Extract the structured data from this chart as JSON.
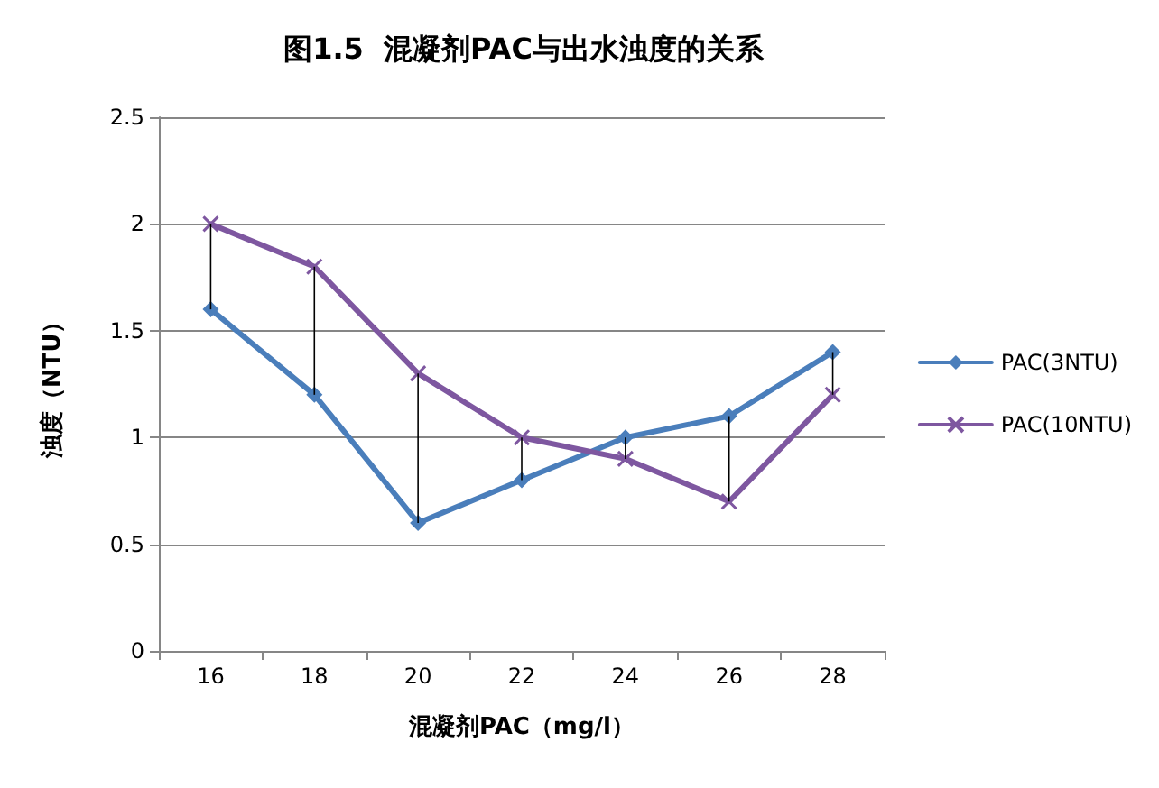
{
  "chart_data": {
    "type": "line",
    "title": "图1.5  混凝剂PAC与出水浊度的关系",
    "xlabel": "混凝剂PAC（mg/l）",
    "ylabel": "浊度（NTU）",
    "categories": [
      "16",
      "18",
      "20",
      "22",
      "24",
      "26",
      "28"
    ],
    "series": [
      {
        "name": "PAC(3NTU)",
        "color": "#4a7ebb",
        "marker": "diamond",
        "values": [
          1.6,
          1.2,
          0.6,
          0.8,
          1.0,
          1.1,
          1.4
        ],
        "errors": [
          [
            1.6,
            2.0
          ],
          [
            1.2,
            1.8
          ],
          [
            0.6,
            1.3
          ],
          [
            0.8,
            1.0
          ],
          [
            0.9,
            1.0
          ],
          [
            0.7,
            1.1
          ],
          [
            1.2,
            1.4
          ]
        ]
      },
      {
        "name": "PAC(10NTU)",
        "color": "#7e57a0",
        "marker": "cross",
        "values": [
          2.0,
          1.8,
          1.3,
          1.0,
          0.9,
          0.7,
          1.2
        ]
      }
    ],
    "ylim": [
      0,
      2.5
    ],
    "yticks": [
      0,
      0.5,
      1,
      1.5,
      2,
      2.5
    ],
    "grid": "y",
    "legend": "right",
    "line_style": "solid"
  }
}
